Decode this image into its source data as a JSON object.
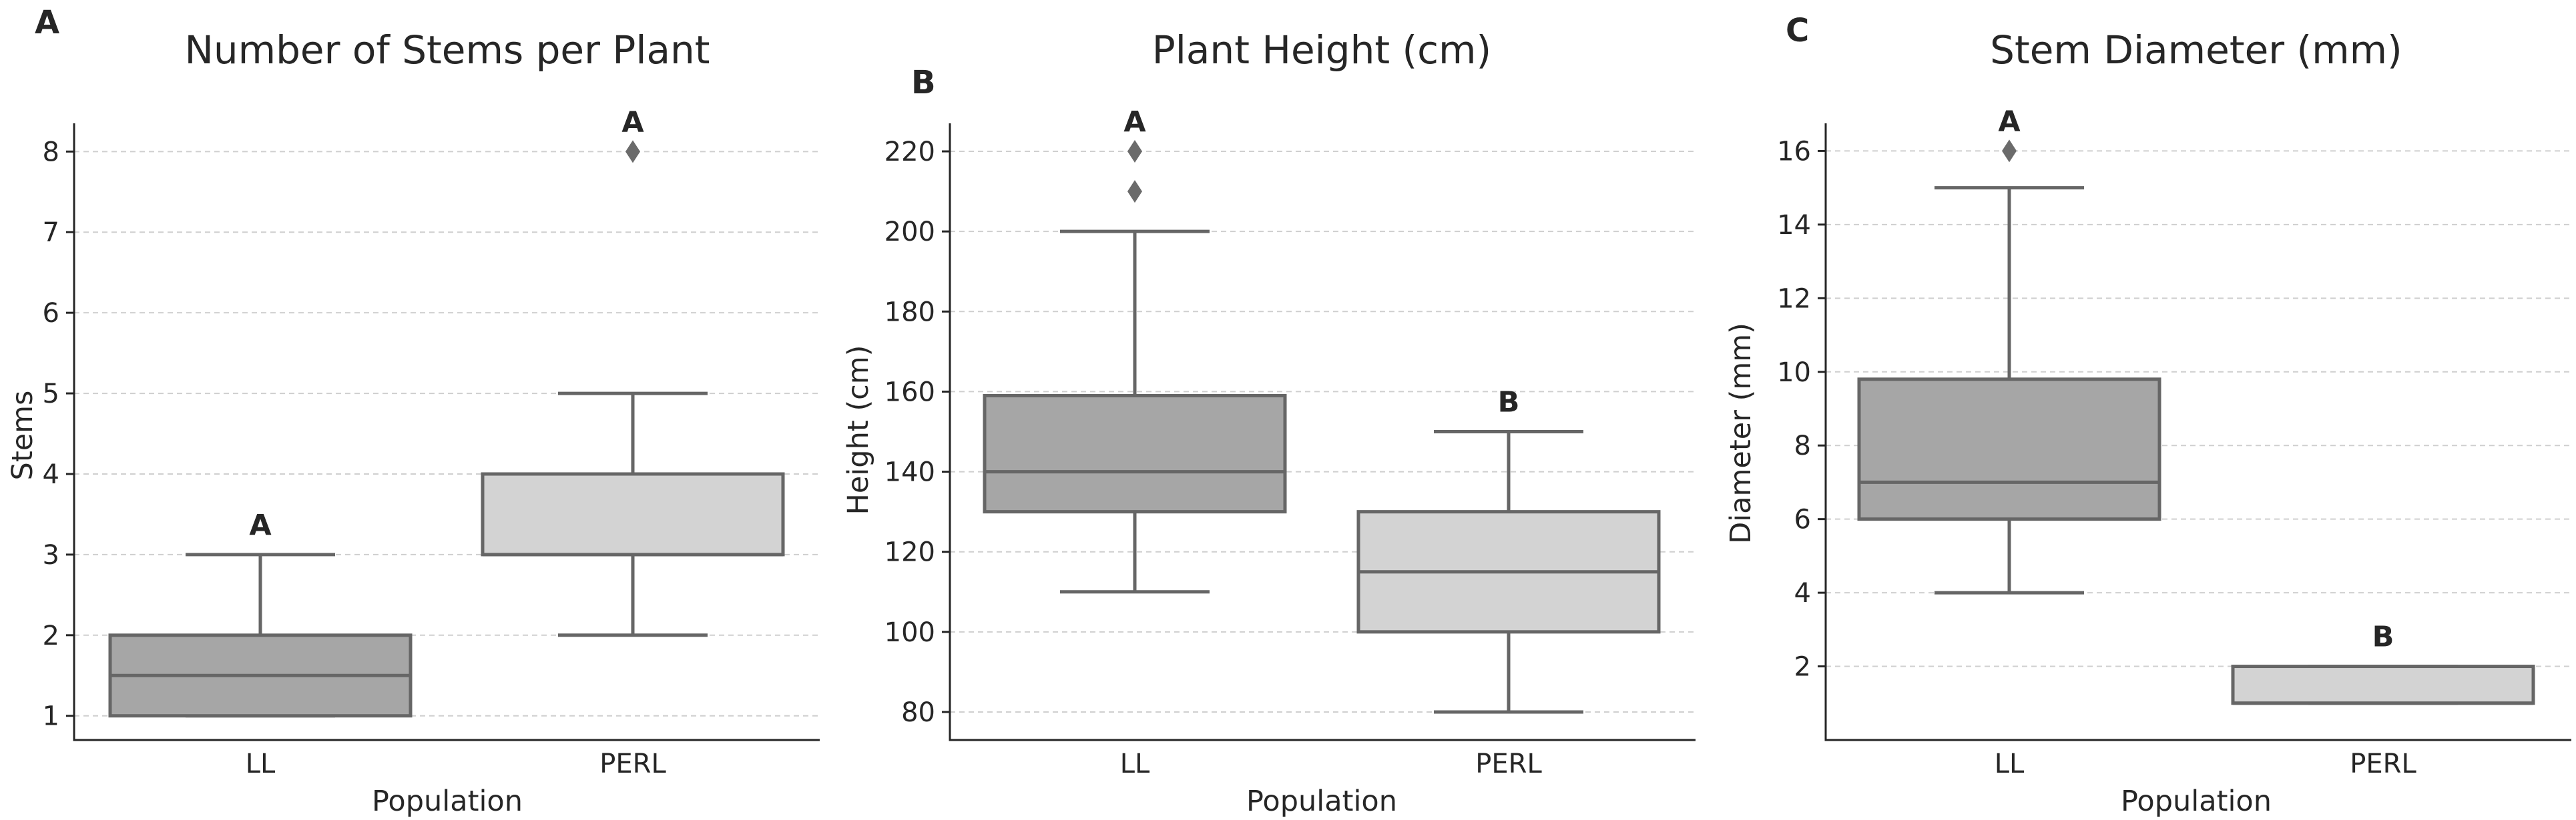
{
  "chart_data": [
    {
      "type": "box",
      "panel_label": "A",
      "title": "Number of Stems per Plant",
      "xlabel": "Population",
      "ylabel": "Stems",
      "categories": [
        "LL",
        "PERL"
      ],
      "ylim": [
        0.7,
        8.35
      ],
      "yticks": [
        "1",
        "2",
        "3",
        "4",
        "5",
        "6",
        "7",
        "8"
      ],
      "grid": true,
      "boxes": [
        {
          "category": "LL",
          "whisker_low": 1,
          "q1": 1,
          "median": 1.5,
          "q3": 2,
          "whisker_high": 3,
          "outliers": [],
          "color": "#a6a6a6",
          "significance": "A"
        },
        {
          "category": "PERL",
          "whisker_low": 2,
          "q1": 3,
          "median": 3,
          "q3": 4,
          "whisker_high": 5,
          "outliers": [
            8
          ],
          "color": "#d3d3d3",
          "significance": "A"
        }
      ]
    },
    {
      "type": "box",
      "panel_label": "B",
      "title": "Plant Height (cm)",
      "xlabel": "Population",
      "ylabel": "Height (cm)",
      "categories": [
        "LL",
        "PERL"
      ],
      "ylim": [
        73,
        227
      ],
      "yticks": [
        "80",
        "100",
        "120",
        "140",
        "160",
        "180",
        "200",
        "220"
      ],
      "grid": true,
      "boxes": [
        {
          "category": "LL",
          "whisker_low": 110,
          "q1": 130,
          "median": 140,
          "q3": 159,
          "whisker_high": 200,
          "outliers": [
            210,
            220
          ],
          "color": "#a6a6a6",
          "significance": "A"
        },
        {
          "category": "PERL",
          "whisker_low": 80,
          "q1": 100,
          "median": 115,
          "q3": 130,
          "whisker_high": 150,
          "outliers": [],
          "color": "#d3d3d3",
          "significance": "B"
        }
      ]
    },
    {
      "type": "box",
      "panel_label": "C",
      "title": "Stem Diameter (mm)",
      "xlabel": "Population",
      "ylabel": "Diameter (mm)",
      "categories": [
        "LL",
        "PERL"
      ],
      "ylim": [
        0,
        16.75
      ],
      "yticks": [
        "2",
        "4",
        "6",
        "8",
        "10",
        "12",
        "14",
        "16"
      ],
      "grid": true,
      "boxes": [
        {
          "category": "LL",
          "whisker_low": 4,
          "q1": 6,
          "median": 7,
          "q3": 9.8,
          "whisker_high": 15,
          "outliers": [
            16
          ],
          "color": "#a6a6a6",
          "significance": "A"
        },
        {
          "category": "PERL",
          "whisker_low": 1,
          "q1": 1,
          "median": 1,
          "q3": 2,
          "whisker_high": 2,
          "outliers": [],
          "color": "#d3d3d3",
          "significance": "B"
        }
      ]
    }
  ]
}
